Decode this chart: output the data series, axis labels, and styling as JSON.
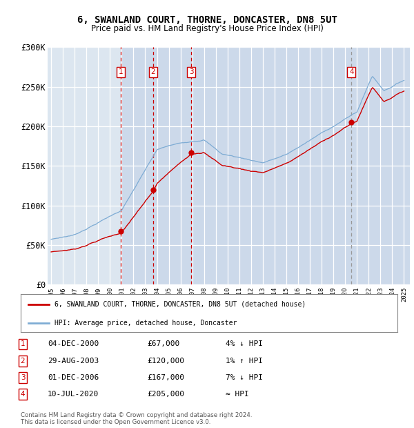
{
  "title": "6, SWANLAND COURT, THORNE, DONCASTER, DN8 5UT",
  "subtitle": "Price paid vs. HM Land Registry's House Price Index (HPI)",
  "background_color": "#dce6f0",
  "plot_bg_color": "#dce6f0",
  "highlight_bg": "#ccd9ea",
  "sale_year_floats": [
    2000.921,
    2003.664,
    2006.921,
    2020.531
  ],
  "sale_prices": [
    67000,
    120000,
    167000,
    205000
  ],
  "sale_labels": [
    "1",
    "2",
    "3",
    "4"
  ],
  "sale_table": [
    [
      "1",
      "04-DEC-2000",
      "£67,000",
      "4% ↓ HPI"
    ],
    [
      "2",
      "29-AUG-2003",
      "£120,000",
      "1% ↑ HPI"
    ],
    [
      "3",
      "01-DEC-2006",
      "£167,000",
      "7% ↓ HPI"
    ],
    [
      "4",
      "10-JUL-2020",
      "£205,000",
      "≈ HPI"
    ]
  ],
  "legend_line1": "6, SWANLAND COURT, THORNE, DONCASTER, DN8 5UT (detached house)",
  "legend_line2": "HPI: Average price, detached house, Doncaster",
  "footer1": "Contains HM Land Registry data © Crown copyright and database right 2024.",
  "footer2": "This data is licensed under the Open Government Licence v3.0.",
  "hpi_color": "#7eacd4",
  "price_color": "#cc0000",
  "vline_color_red": "#cc0000",
  "vline_color_grey": "#999999",
  "ylim": [
    0,
    300000
  ],
  "yticks": [
    0,
    50000,
    100000,
    150000,
    200000,
    250000,
    300000
  ],
  "ytick_labels": [
    "£0",
    "£50K",
    "£100K",
    "£150K",
    "£200K",
    "£250K",
    "£300K"
  ],
  "x_start": 1994.7,
  "x_end": 2025.5,
  "xtick_years": [
    1995,
    1996,
    1997,
    1998,
    1999,
    2000,
    2001,
    2002,
    2003,
    2004,
    2005,
    2006,
    2007,
    2008,
    2009,
    2010,
    2011,
    2012,
    2013,
    2014,
    2015,
    2016,
    2017,
    2018,
    2019,
    2020,
    2021,
    2022,
    2023,
    2024,
    2025
  ],
  "highlight_start": 2000.921
}
